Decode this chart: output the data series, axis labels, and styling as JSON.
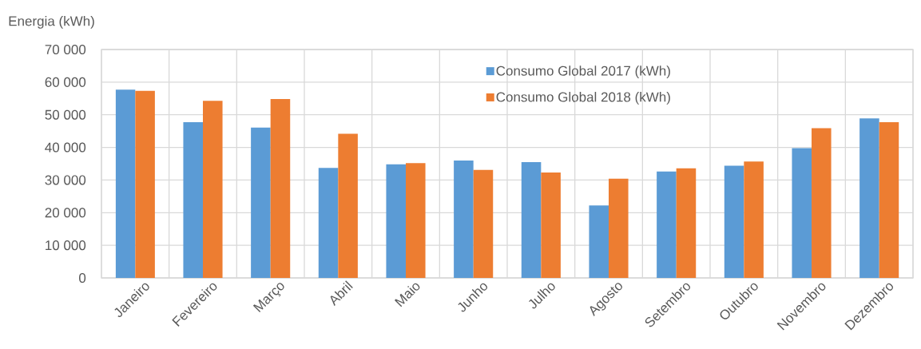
{
  "chart_data": {
    "type": "bar",
    "ylabel": "Energia (kWh)",
    "categories": [
      "Janeiro",
      "Fevereiro",
      "Março",
      "Abril",
      "Maio",
      "Junho",
      "Julho",
      "Agosto",
      "Setembro",
      "Outubro",
      "Novembro",
      "Dezembro"
    ],
    "series": [
      {
        "name": "Consumo Global 2017 (kWh)",
        "color": "#5b9bd5",
        "values": [
          57700,
          47700,
          46100,
          33700,
          34800,
          36000,
          35500,
          22200,
          32600,
          34400,
          39800,
          48900
        ]
      },
      {
        "name": "Consumo Global 2018 (kWh)",
        "color": "#ed7d31",
        "values": [
          57400,
          54300,
          54800,
          44200,
          35200,
          33100,
          32300,
          30400,
          33600,
          35700,
          45900,
          47700
        ]
      }
    ],
    "ylim": [
      0,
      70000
    ],
    "yticks": [
      0,
      {
        "value": 10000,
        "label": "10 000"
      },
      {
        "value": 20000,
        "label": "20 000"
      },
      {
        "value": 30000,
        "label": "30 000"
      },
      {
        "value": 40000,
        "label": "40 000"
      },
      {
        "value": 50000,
        "label": "50 000"
      },
      {
        "value": 60000,
        "label": "60 000"
      },
      {
        "value": 70000,
        "label": "70 000"
      }
    ],
    "grid": true,
    "legend": "top"
  }
}
